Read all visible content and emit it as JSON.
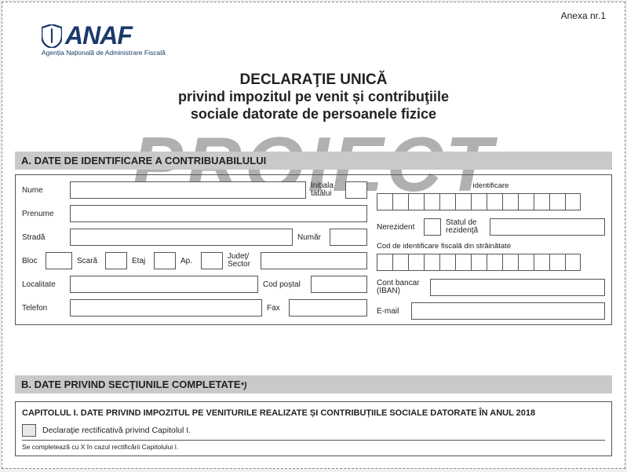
{
  "annex": "Anexa nr.1",
  "logo": {
    "brand": "ANAF",
    "subtitle": "Agenția Națională de Administrare Fiscală"
  },
  "watermark": "PROIECT",
  "title": {
    "main": "DECLARAŢIE UNICĂ",
    "sub1": "privind impozitul pe venit și contribuţiile",
    "sub2": "sociale datorate de persoanele fizice"
  },
  "sectionA": {
    "header": "A. DATE DE IDENTIFICARE A CONTRIBUABILULUI",
    "labels": {
      "nume": "Nume",
      "initiala": "Iniţiala tatălui",
      "prenume": "Prenume",
      "strada": "Stradă",
      "numar": "Număr",
      "bloc": "Bloc",
      "scara": "Scară",
      "etaj": "Etaj",
      "ap": "Ap.",
      "judet": "Judeţ/ Sector",
      "localitate": "Localitate",
      "codpostal": "Cod poștal",
      "telefon": "Telefon",
      "fax": "Fax",
      "identificare": "identificare",
      "nerezident": "Nerezident",
      "statul": "Statul de rezidenţă",
      "codstrainatate": "Cod de identificare fiscală din străinătate",
      "iban": "Cont bancar (IBAN)",
      "email": "E-mail"
    },
    "id_cells": 13,
    "foreign_cells": 13
  },
  "sectionB": {
    "header": "B. DATE PRIVIND SECŢIUNILE COMPLETATE",
    "asterisk": "*)",
    "capTitle": "CAPITOLUL I. DATE PRIVIND IMPOZITUL PE VENITURILE REALIZATE ȘI CONTRIBUȚIILE SOCIALE DATORATE ÎN ANUL 2018",
    "checkbox": "Declaraţie rectificativă privind Capitolul I.",
    "note": "Se completează cu X în cazul rectificării Capitolului I."
  },
  "colors": {
    "brand": "#1a3a6b",
    "bar": "#c9c9c9",
    "border": "#555555",
    "watermark": "#b0b0b0"
  }
}
